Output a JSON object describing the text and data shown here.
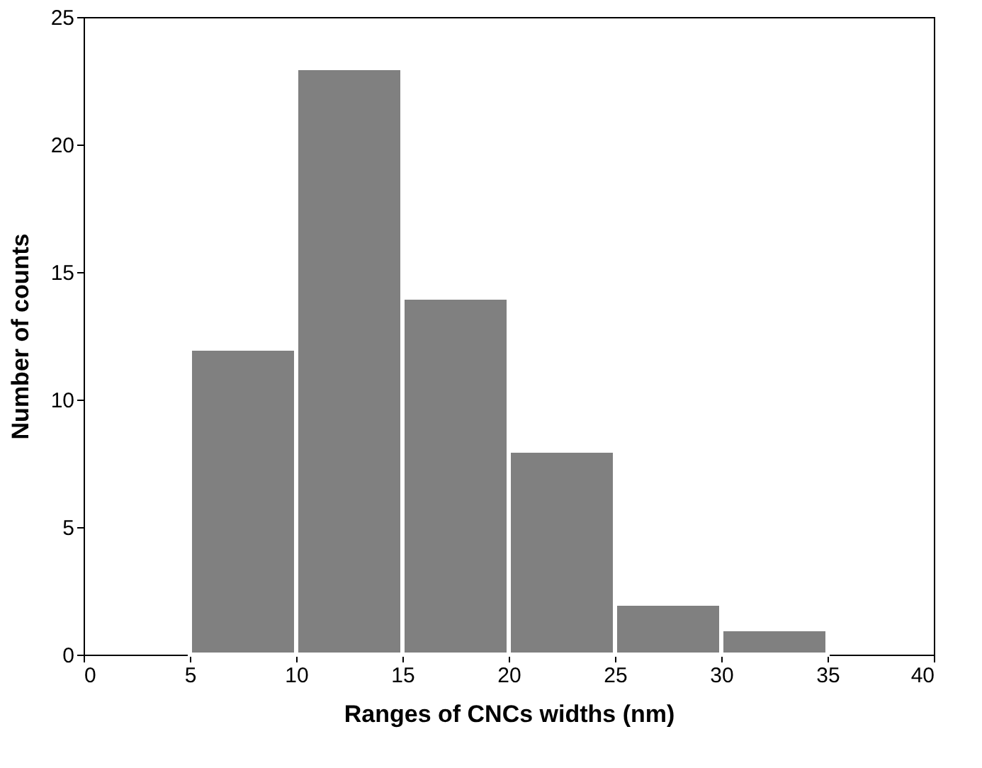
{
  "chart_data": {
    "type": "histogram",
    "xlabel": "Ranges of CNCs widths (nm)",
    "ylabel": "Number of counts",
    "bins": [
      5,
      10,
      15,
      20,
      25,
      30,
      35
    ],
    "values": [
      12,
      23,
      14,
      8,
      2,
      1
    ],
    "color": "#808080",
    "xlim": [
      0,
      40
    ],
    "xticks": [
      0,
      5,
      10,
      15,
      20,
      25,
      30,
      35,
      40
    ],
    "ylim": [
      0,
      25
    ],
    "yticks": [
      0,
      5,
      10,
      15,
      20,
      25
    ],
    "grid": false
  }
}
